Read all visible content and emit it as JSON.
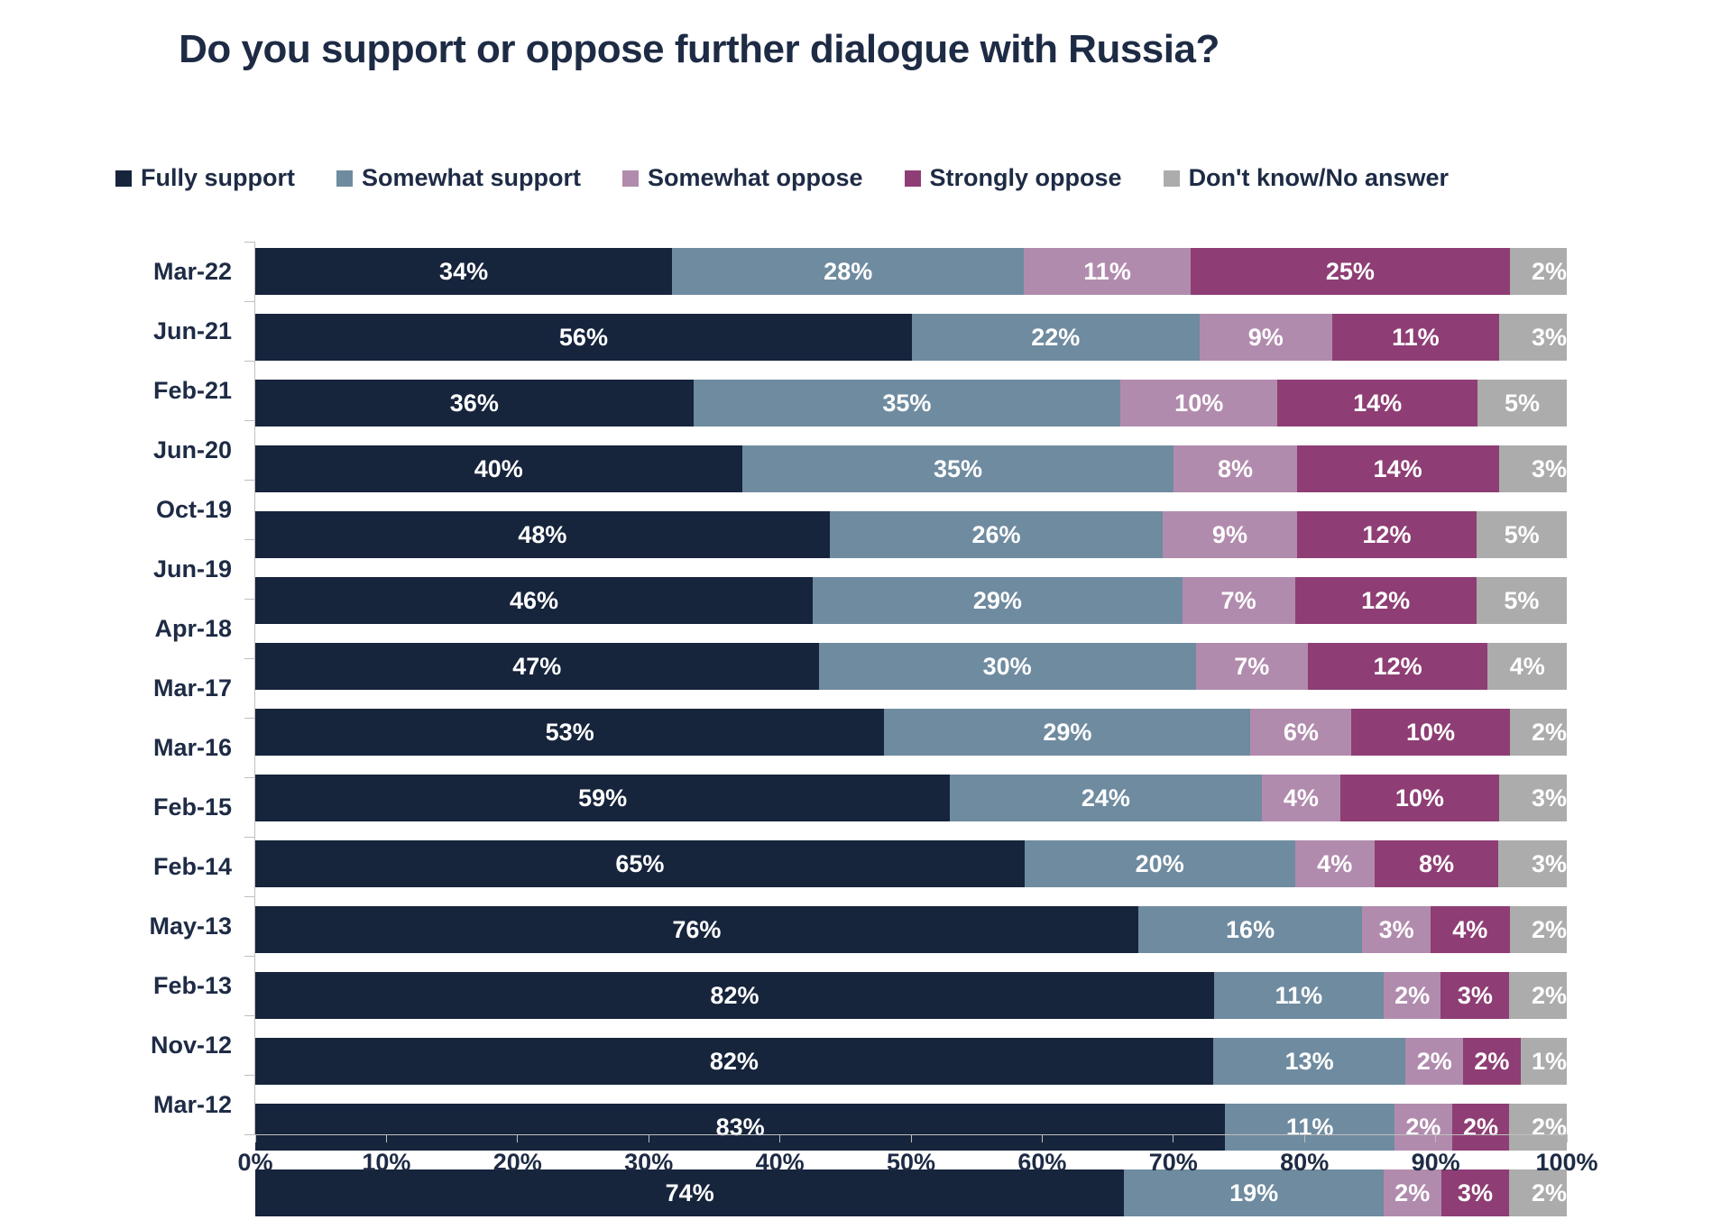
{
  "title": "Do you support or oppose further dialogue with Russia?",
  "colors": {
    "text": "#1E2B45",
    "axis_line": "#BFBFBF",
    "background": "#FFFFFF",
    "fully_support": "#16243C",
    "somewhat_support": "#6F8BA0",
    "somewhat_oppose": "#B18BAD",
    "strongly_oppose": "#8E3E74",
    "dont_know": "#ACACAC"
  },
  "chart_data": {
    "type": "bar",
    "orientation": "horizontal",
    "stacked": true,
    "grid": false,
    "legend_position": "top",
    "value_suffix": "%",
    "xlim": [
      0,
      100
    ],
    "x_tick_labels": [
      "0%",
      "10%",
      "20%",
      "30%",
      "40%",
      "50%",
      "60%",
      "70%",
      "80%",
      "90%",
      "100%"
    ],
    "categories": [
      "Mar-22",
      "Jun-21",
      "Feb-21",
      "Jun-20",
      "Oct-19",
      "Jun-19",
      "Apr-18",
      "Mar-17",
      "Mar-16",
      "Feb-15",
      "Feb-14",
      "May-13",
      "Feb-13",
      "Nov-12",
      "Mar-12"
    ],
    "series": [
      {
        "name": "Fully support",
        "key": "fully_support",
        "values": [
          34,
          56,
          36,
          40,
          48,
          46,
          47,
          53,
          59,
          65,
          76,
          82,
          82,
          83,
          74
        ]
      },
      {
        "name": "Somewhat support",
        "key": "somewhat_support",
        "values": [
          28,
          22,
          35,
          35,
          26,
          29,
          30,
          29,
          24,
          20,
          16,
          11,
          13,
          11,
          19
        ]
      },
      {
        "name": "Somewhat oppose",
        "key": "somewhat_oppose",
        "values": [
          11,
          9,
          10,
          8,
          9,
          7,
          7,
          6,
          4,
          4,
          3,
          2,
          2,
          2,
          2
        ]
      },
      {
        "name": "Strongly oppose",
        "key": "strongly_oppose",
        "values": [
          25,
          11,
          14,
          14,
          12,
          12,
          12,
          10,
          10,
          8,
          4,
          3,
          2,
          2,
          3
        ]
      },
      {
        "name": "Don't know/No answer",
        "key": "dont_know",
        "values": [
          2,
          3,
          5,
          3,
          5,
          5,
          4,
          2,
          3,
          3,
          2,
          2,
          1,
          2,
          2
        ]
      }
    ]
  }
}
